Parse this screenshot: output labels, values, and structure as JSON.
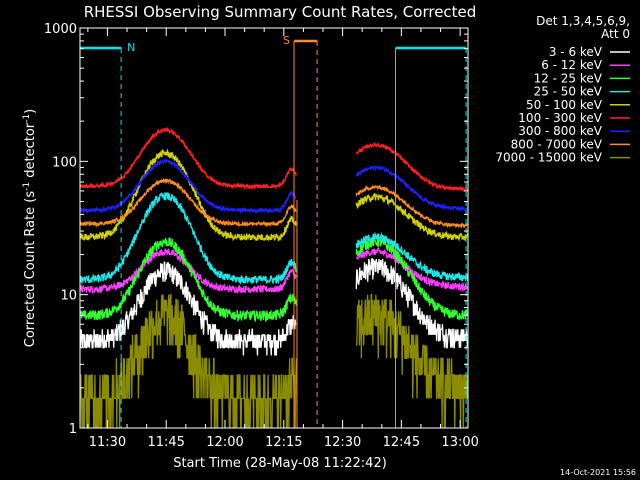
{
  "chart_data": {
    "type": "line",
    "title": "RHESSI Observing Summary Count Rates, Corrected",
    "xlabel": "Start Time (28-May-08 11:22:42)",
    "ylabel_main": "Corrected Count Rate (s",
    "ylabel_sup1": "-1",
    "ylabel_mid": " detector",
    "ylabel_sup2": "-1",
    "ylabel_end": ")",
    "y_scale": "log",
    "ylim": [
      1,
      1000
    ],
    "xlim_minutes": [
      683,
      782
    ],
    "x_ticks": [
      {
        "m": 690,
        "label": "11:30"
      },
      {
        "m": 705,
        "label": "11:45"
      },
      {
        "m": 720,
        "label": "12:00"
      },
      {
        "m": 735,
        "label": "12:15"
      },
      {
        "m": 750,
        "label": "12:30"
      },
      {
        "m": 765,
        "label": "12:45"
      },
      {
        "m": 780,
        "label": "13:00"
      }
    ],
    "y_ticks": [
      {
        "v": 1,
        "label": "1"
      },
      {
        "v": 10,
        "label": "10"
      },
      {
        "v": 100,
        "label": "100"
      },
      {
        "v": 1000,
        "label": "1000"
      }
    ],
    "legend": {
      "header1": "Det 1,3,4,5,6,9,",
      "header2": "Att 0",
      "position": "top-right"
    },
    "series": [
      {
        "name": "3 - 6 keV",
        "color": "#ffffff",
        "pre": 4.5,
        "peak": 15,
        "post_base": 4.8,
        "post_peak": 16,
        "noise": 0.18
      },
      {
        "name": "6 - 12 keV",
        "color": "#ff3cff",
        "pre": 11,
        "peak": 21,
        "post_base": 11.5,
        "post_peak": 21,
        "noise": 0.06
      },
      {
        "name": "12 - 25 keV",
        "color": "#32ff32",
        "pre": 7,
        "peak": 25,
        "post_base": 7,
        "post_peak": 25,
        "noise": 0.09
      },
      {
        "name": "25 - 50 keV",
        "color": "#1ee6e6",
        "pre": 13,
        "peak": 55,
        "post_base": 13.5,
        "post_peak": 27,
        "noise": 0.07
      },
      {
        "name": "50 - 100 keV",
        "color": "#d2d200",
        "pre": 27,
        "peak": 115,
        "post_base": 27,
        "post_peak": 54,
        "noise": 0.06
      },
      {
        "name": "100 - 300 keV",
        "color": "#ff2020",
        "pre": 65,
        "peak": 172,
        "post_base": 62,
        "post_peak": 133,
        "noise": 0.03
      },
      {
        "name": "300 - 800 keV",
        "color": "#2020ff",
        "pre": 43,
        "peak": 100,
        "post_base": 44,
        "post_peak": 90,
        "noise": 0.03
      },
      {
        "name": "800 - 7000 keV",
        "color": "#ff8c1e",
        "pre": 34,
        "peak": 72,
        "post_base": 33,
        "post_peak": 64,
        "noise": 0.03
      },
      {
        "name": "7000 - 15000 keV",
        "color": "#8c8c00",
        "pre": 1.7,
        "peak": 7,
        "post_base": 2,
        "post_peak": 7,
        "noise": 0.5
      }
    ],
    "gaps": [
      {
        "start": 738.3,
        "end": 753.5
      }
    ],
    "night_intervals": [
      {
        "label": "N",
        "start": 683,
        "end": 693.5
      },
      {
        "label": "",
        "start": 763.5,
        "end": 781.5
      }
    ],
    "saa_intervals": [
      {
        "label": "S",
        "start": 737.6,
        "end": 743.5
      }
    ],
    "colors": {
      "night": "#00e6e6",
      "saa": "#ff8c1e",
      "axes": "#ffffff",
      "background": "#000000"
    }
  },
  "timestamp": "14-Oct-2021 15:56"
}
